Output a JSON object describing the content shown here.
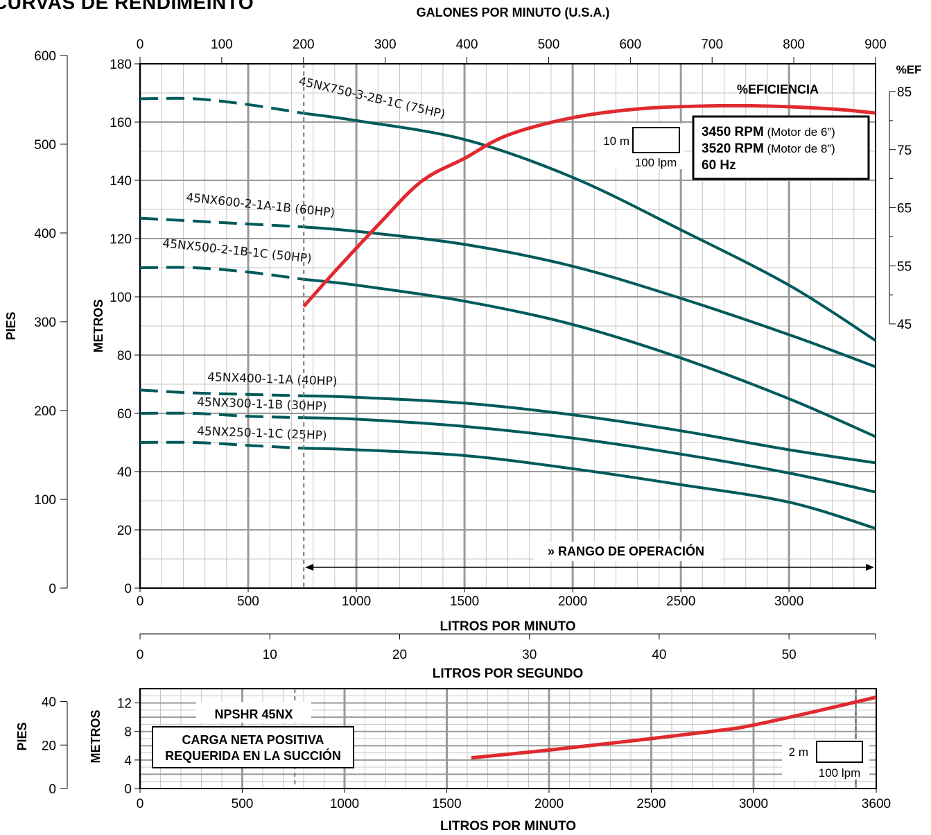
{
  "title": "CURVAS DE RENDIMEINTO",
  "colors": {
    "pump_curve": "#005a5a",
    "efficiency": "#e02a30",
    "grid_major": "#9a9a9a",
    "grid_minor": "#c6c6c6"
  },
  "chart_data": [
    {
      "type": "line",
      "title": "CURVAS DE RENDIMEINTO",
      "xlabel": "LITROS POR MINUTO",
      "ylabel": "METROS",
      "xlim": [
        0,
        3400
      ],
      "ylim": [
        0,
        180
      ],
      "grid": true,
      "x_ticks": [
        0,
        500,
        1000,
        1500,
        2000,
        2500,
        3000
      ],
      "y_ticks": [
        0,
        20,
        40,
        60,
        80,
        100,
        120,
        140,
        160,
        180
      ],
      "secondary_axes": {
        "top": {
          "label": "GALONES POR MINUTO (U.S.A.)",
          "ticks": [
            0,
            100,
            200,
            300,
            400,
            500,
            600,
            700,
            800,
            900
          ]
        },
        "bottom2": {
          "label": "LITROS POR SEGUNDO",
          "ticks": [
            0,
            10,
            20,
            30,
            40,
            50
          ]
        },
        "left_outer": {
          "label": "PIES",
          "ticks": [
            0,
            100,
            200,
            300,
            400,
            500,
            600
          ]
        },
        "right": {
          "label": "%EF",
          "ticks": [
            45,
            55,
            65,
            75,
            85
          ]
        }
      },
      "series": [
        {
          "name": "45NX750-3-2B-1C (75HP)",
          "x": [
            0,
            250,
            500,
            757,
            1000,
            1500,
            2000,
            2500,
            3000,
            3400
          ],
          "y": [
            168,
            168,
            166,
            163,
            160.5,
            154,
            141,
            123,
            104,
            85
          ]
        },
        {
          "name": "45NX600-2-1A-1B (60HP)",
          "x": [
            0,
            250,
            500,
            757,
            1000,
            1500,
            2000,
            2500,
            3000,
            3400
          ],
          "y": [
            127,
            126,
            125,
            124,
            122.5,
            118,
            110.5,
            99.5,
            87,
            76
          ]
        },
        {
          "name": "45NX500-2-1B-1C (50HP)",
          "x": [
            0,
            250,
            500,
            757,
            1000,
            1500,
            2000,
            2500,
            3000,
            3400
          ],
          "y": [
            110,
            110,
            108.5,
            106,
            104,
            98.5,
            90.5,
            79,
            65,
            52
          ]
        },
        {
          "name": "45NX400-1-1A (40HP)",
          "x": [
            0,
            250,
            500,
            757,
            1000,
            1500,
            2000,
            2500,
            3000,
            3400
          ],
          "y": [
            68,
            67,
            66.5,
            66,
            65.5,
            63.5,
            59.5,
            54,
            47.5,
            43
          ]
        },
        {
          "name": "45NX300-1-1B (30HP)",
          "x": [
            0,
            250,
            500,
            757,
            1000,
            1500,
            2000,
            2500,
            3000,
            3400
          ],
          "y": [
            60,
            60,
            59,
            58.5,
            58,
            55.5,
            51.5,
            46,
            39.5,
            33
          ]
        },
        {
          "name": "45NX250-1-1C (25HP)",
          "x": [
            0,
            250,
            500,
            757,
            1000,
            1500,
            2000,
            2500,
            3000,
            3400
          ],
          "y": [
            50,
            50,
            49,
            48,
            47.5,
            45.5,
            41,
            35.5,
            29.5,
            20.5
          ]
        }
      ],
      "efficiency": {
        "label": "%EFICIENCIA",
        "x": [
          757,
          900,
          1100,
          1300,
          1500,
          1700,
          2000,
          2300,
          2600,
          2900,
          3200,
          3400
        ],
        "y": [
          48,
          54,
          62,
          69.5,
          73.5,
          77.5,
          80.5,
          82,
          82.5,
          82.5,
          82,
          81.3
        ]
      },
      "min_flow_line_x": 757,
      "annotations": {
        "operating_range": "» RANGO DE OPERACIÓN",
        "scale_box_height": "10 m",
        "scale_box_width": "100 lpm",
        "specs": [
          {
            "bold": "3450 RPM",
            "normal": "(Motor de 6”)"
          },
          {
            "bold": "3520 RPM",
            "normal": "(Motor de 8”)"
          },
          {
            "bold": "60 Hz",
            "normal": ""
          }
        ]
      }
    },
    {
      "type": "line",
      "title": "NPSHR 45NX",
      "subtitle": [
        "CARGA NETA POSITIVA",
        "REQUERIDA EN LA SUCCIÓN"
      ],
      "xlabel": "LITROS POR MINUTO",
      "ylabel": "METROS",
      "xlim": [
        0,
        3600
      ],
      "ylim": [
        0,
        14
      ],
      "grid": true,
      "x_ticks": [
        0,
        500,
        1000,
        1500,
        2000,
        2500,
        3000,
        3600
      ],
      "y_ticks": [
        0,
        4,
        8,
        12
      ],
      "secondary_axes": {
        "left_outer": {
          "label": "PIES",
          "ticks": [
            0,
            20,
            40
          ]
        }
      },
      "series": [
        {
          "name": "NPSHR",
          "x": [
            1620,
            2000,
            2500,
            2850,
            3000,
            3300,
            3600
          ],
          "y": [
            4.3,
            5.4,
            7.0,
            8.2,
            8.9,
            10.8,
            12.8
          ]
        }
      ],
      "min_flow_line_x": 757,
      "annotations": {
        "scale_box_height": "2 m",
        "scale_box_width": "100 lpm"
      }
    }
  ]
}
